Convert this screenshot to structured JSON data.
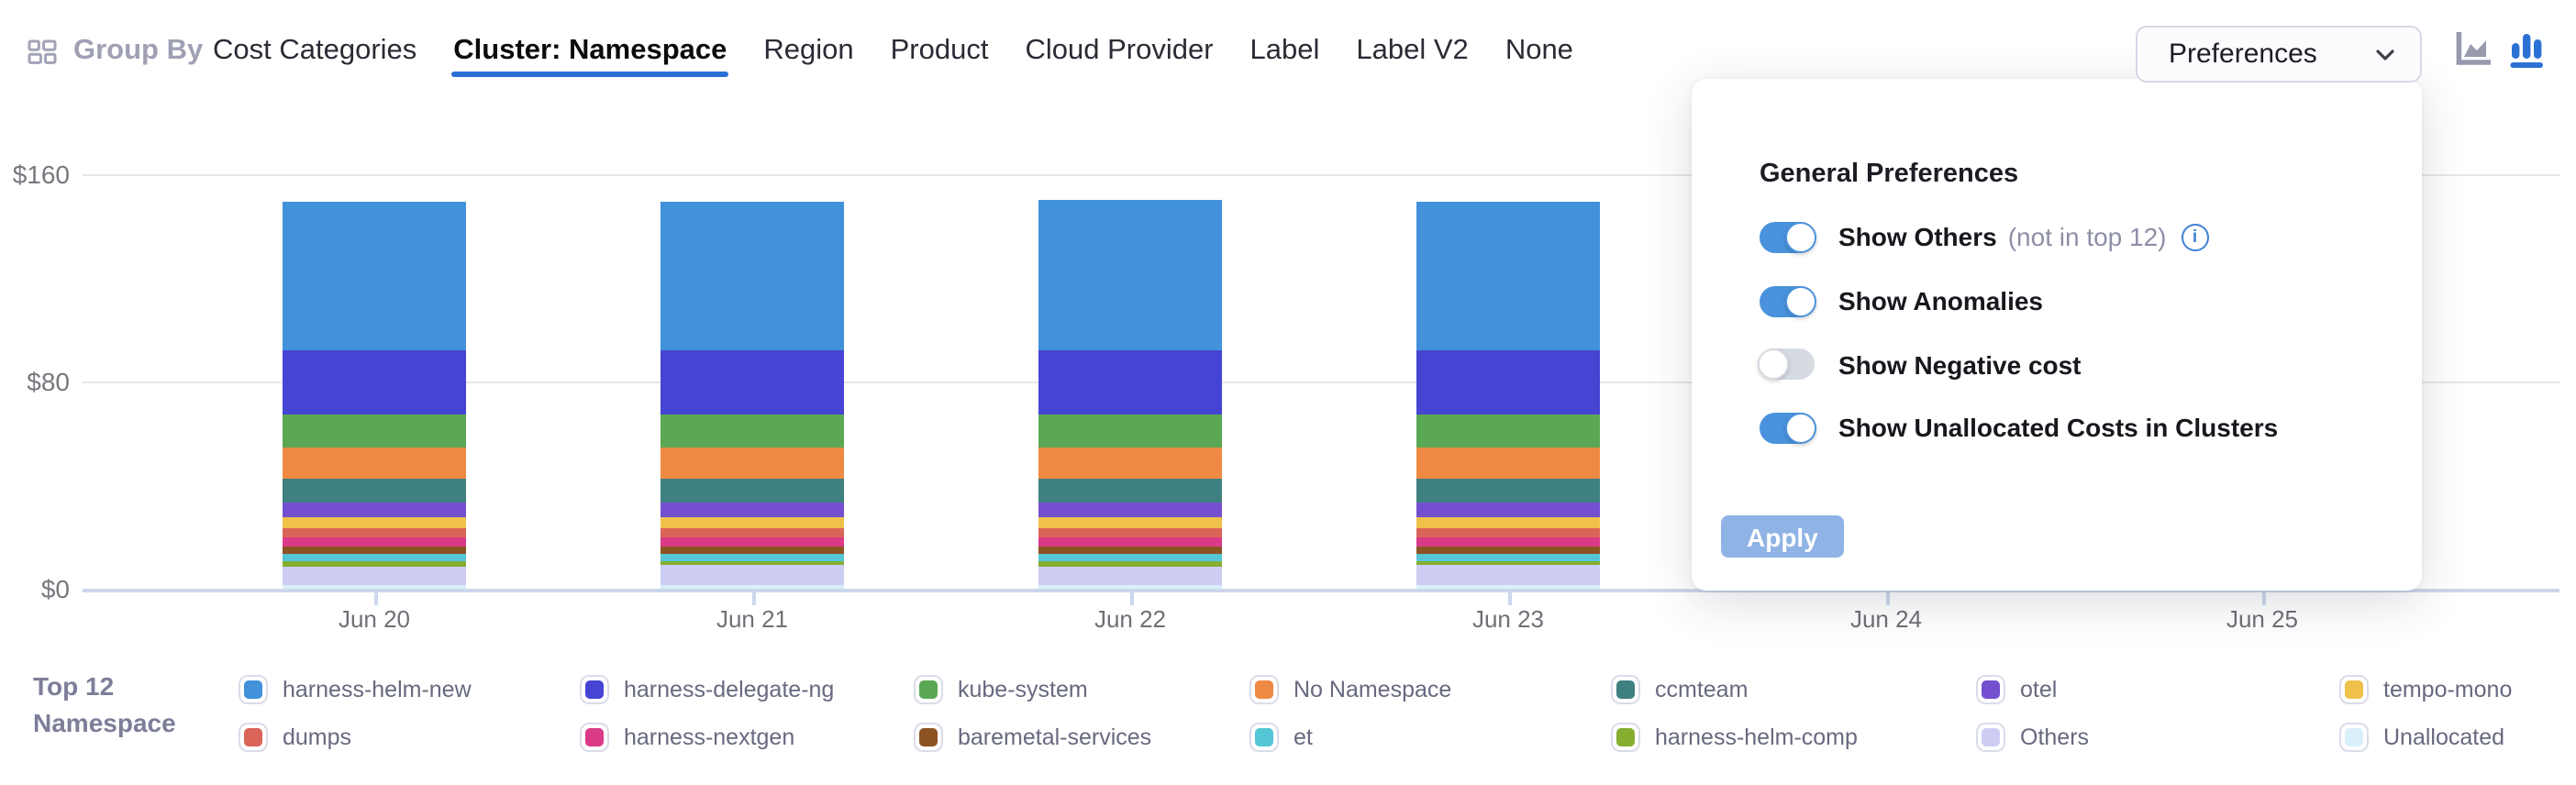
{
  "header": {
    "group_by_label": "Group By",
    "tabs": [
      {
        "label": "Cost Categories",
        "active": false
      },
      {
        "label": "Cluster: Namespace",
        "active": true
      },
      {
        "label": "Region",
        "active": false
      },
      {
        "label": "Product",
        "active": false
      },
      {
        "label": "Cloud Provider",
        "active": false
      },
      {
        "label": "Label",
        "active": false
      },
      {
        "label": "Label V2",
        "active": false
      },
      {
        "label": "None",
        "active": false
      }
    ],
    "preferences_button_label": "Preferences",
    "chart_type_toggles": [
      {
        "name": "area-chart",
        "active": false
      },
      {
        "name": "bar-chart",
        "active": true
      }
    ],
    "accent_color": "#2970d6"
  },
  "preferences_panel": {
    "title": "General Preferences",
    "toggles": [
      {
        "label": "Show Others",
        "note": "(not in top 12)",
        "info_icon": true,
        "on": true
      },
      {
        "label": "Show Anomalies",
        "note": "",
        "info_icon": false,
        "on": true
      },
      {
        "label": "Show Negative cost",
        "note": "",
        "info_icon": false,
        "on": false
      },
      {
        "label": "Show Unallocated Costs in Clusters",
        "note": "",
        "info_icon": false,
        "on": true
      }
    ],
    "apply_label": "Apply",
    "toggle_on_color": "#4a92db"
  },
  "legend": {
    "title_line1": "Top 12",
    "title_line2": "Namespace"
  },
  "chart_data": {
    "type": "bar",
    "stacked": true,
    "title": "",
    "xlabel": "",
    "ylabel": "",
    "categories": [
      "Jun 20",
      "Jun 21",
      "Jun 22",
      "Jun 23",
      "Jun 24",
      "Jun 25"
    ],
    "ylim": [
      0,
      160
    ],
    "ytick_values": [
      0,
      80,
      160
    ],
    "ytick_labels": [
      "$0",
      "$80",
      "$160"
    ],
    "grid": true,
    "legend_position": "bottom",
    "series": [
      {
        "name": "harness-helm-new",
        "color": "#4191db",
        "values": [
          57.5,
          58,
          58.5,
          58,
          null,
          null
        ]
      },
      {
        "name": "harness-delegate-ng",
        "color": "#4644d3",
        "values": [
          25,
          24.5,
          24.5,
          24.5,
          null,
          null
        ]
      },
      {
        "name": "kube-system",
        "color": "#5ba854",
        "values": [
          13,
          13,
          13,
          13,
          null,
          null
        ]
      },
      {
        "name": "No Namespace",
        "color": "#ee8a44",
        "values": [
          12,
          12,
          12,
          12,
          null,
          null
        ]
      },
      {
        "name": "ccmteam",
        "color": "#3f8080",
        "values": [
          9,
          9,
          9,
          9,
          null,
          null
        ]
      },
      {
        "name": "otel",
        "color": "#7450d1",
        "values": [
          5.5,
          5.5,
          5.5,
          5.5,
          null,
          null
        ]
      },
      {
        "name": "tempo-mono",
        "color": "#f0c14a",
        "values": [
          4.5,
          4.5,
          4.5,
          4.5,
          null,
          null
        ]
      },
      {
        "name": "dumps",
        "color": "#db6459",
        "values": [
          3.5,
          3.5,
          3.5,
          3.5,
          null,
          null
        ]
      },
      {
        "name": "harness-nextgen",
        "color": "#da3a88",
        "values": [
          3.5,
          3.5,
          3.5,
          3.5,
          null,
          null
        ]
      },
      {
        "name": "baremetal-services",
        "color": "#8c5322",
        "values": [
          3,
          3,
          3,
          3,
          null,
          null
        ]
      },
      {
        "name": "et",
        "color": "#54c6d6",
        "values": [
          2.5,
          2.5,
          2.5,
          2.5,
          null,
          null
        ]
      },
      {
        "name": "harness-helm-comp",
        "color": "#86ae31",
        "values": [
          2,
          2,
          2,
          2,
          null,
          null
        ]
      },
      {
        "name": "Others",
        "color": "#cdcdf4",
        "values": [
          7.5,
          7.5,
          7.5,
          7.5,
          null,
          null
        ]
      },
      {
        "name": "Unallocated",
        "color": "#d9f0fb",
        "values": [
          1.5,
          1.5,
          1.5,
          1.5,
          null,
          null
        ]
      }
    ]
  }
}
